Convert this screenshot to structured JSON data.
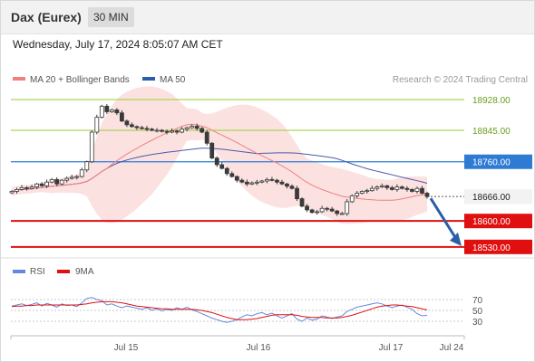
{
  "header": {
    "symbol": "Dax (Eurex)",
    "timeframe": "30 MIN",
    "datetime": "Wednesday, July 17, 2024 8:05:07 AM CET"
  },
  "legend": {
    "ma20": "MA 20 + Bollinger Bands",
    "ma50": "MA 50",
    "credit": "Research © 2024 Trading Central",
    "rsi": "RSI",
    "rsi_ma": "9MA"
  },
  "colors": {
    "band_fill": "#fcdede",
    "ma20": "#f08080",
    "ma50": "#4a5aa8",
    "candle": "#3a3a3a",
    "pivot": "#2e7bd4",
    "support": "#e01010",
    "resistance_line": "#9acd32",
    "resistance_text": "#6b9e1f",
    "forecast_arrow": "#2a5ea8",
    "rsi": "#6688dd",
    "rsi_ma": "#e01010"
  },
  "chart_data": {
    "type": "candlestick",
    "title": "Dax (Eurex)",
    "timeframe": "30 MIN",
    "ylim": [
      18510,
      18950
    ],
    "x_ticks": [
      "Jul 15",
      "Jul 16",
      "Jul 17",
      "Jul 24"
    ],
    "levels": [
      {
        "label": "18928.00",
        "value": 18928,
        "type": "resistance"
      },
      {
        "label": "18845.00",
        "value": 18845,
        "type": "resistance"
      },
      {
        "label": "18760.00",
        "value": 18760,
        "type": "pivot"
      },
      {
        "label": "18666.00",
        "value": 18666,
        "type": "last"
      },
      {
        "label": "18600.00",
        "value": 18600,
        "type": "support"
      },
      {
        "label": "18530.00",
        "value": 18530,
        "type": "support"
      }
    ],
    "closes": [
      18680,
      18685,
      18690,
      18688,
      18692,
      18700,
      18695,
      18705,
      18712,
      18700,
      18710,
      18715,
      18718,
      18720,
      18738,
      18760,
      18840,
      18880,
      18910,
      18895,
      18900,
      18892,
      18870,
      18860,
      18855,
      18852,
      18850,
      18848,
      18845,
      18845,
      18842,
      18840,
      18843,
      18840,
      18848,
      18852,
      18856,
      18850,
      18840,
      18810,
      18770,
      18752,
      18742,
      18728,
      18720,
      18710,
      18705,
      18700,
      18703,
      18705,
      18708,
      18712,
      18710,
      18705,
      18700,
      18694,
      18688,
      18660,
      18640,
      18630,
      18623,
      18625,
      18634,
      18632,
      18627,
      18620,
      18620,
      18652,
      18668,
      18675,
      18680,
      18682,
      18688,
      18692,
      18695,
      18690,
      18685,
      18692,
      18688,
      18685,
      18680,
      18688,
      18675,
      18666
    ],
    "rsi": {
      "levels": [
        70,
        50,
        30
      ],
      "series": [
        {
          "name": "RSI",
          "values": [
            58,
            60,
            62,
            59,
            61,
            64,
            58,
            63,
            60,
            56,
            62,
            59,
            60,
            57,
            64,
            72,
            74,
            70,
            68,
            60,
            62,
            58,
            55,
            58,
            56,
            54,
            52,
            55,
            50,
            53,
            49,
            52,
            50,
            55,
            52,
            56,
            51,
            48,
            44,
            40,
            36,
            33,
            30,
            28,
            30,
            33,
            38,
            42,
            40,
            44,
            46,
            42,
            45,
            40,
            36,
            40,
            44,
            34,
            30,
            36,
            32,
            34,
            40,
            38,
            35,
            38,
            40,
            48,
            52,
            56,
            58,
            60,
            62,
            64,
            62,
            58,
            55,
            58,
            60,
            56,
            52,
            44,
            40,
            41
          ]
        },
        {
          "name": "9MA",
          "values": [
            57,
            58,
            58,
            59,
            59,
            60,
            60,
            60,
            60,
            60,
            60,
            60,
            60,
            60,
            61,
            62,
            64,
            65,
            66,
            66,
            66,
            65,
            64,
            62,
            60,
            58,
            57,
            56,
            55,
            54,
            53,
            53,
            52,
            52,
            52,
            52,
            52,
            51,
            50,
            48,
            46,
            43,
            40,
            37,
            35,
            33,
            33,
            33,
            34,
            35,
            37,
            39,
            41,
            42,
            42,
            42,
            42,
            41,
            39,
            38,
            37,
            37,
            37,
            36,
            36,
            36,
            37,
            39,
            41,
            44,
            47,
            50,
            53,
            56,
            58,
            59,
            60,
            60,
            59,
            58,
            57,
            55,
            53,
            51
          ]
        }
      ]
    }
  }
}
